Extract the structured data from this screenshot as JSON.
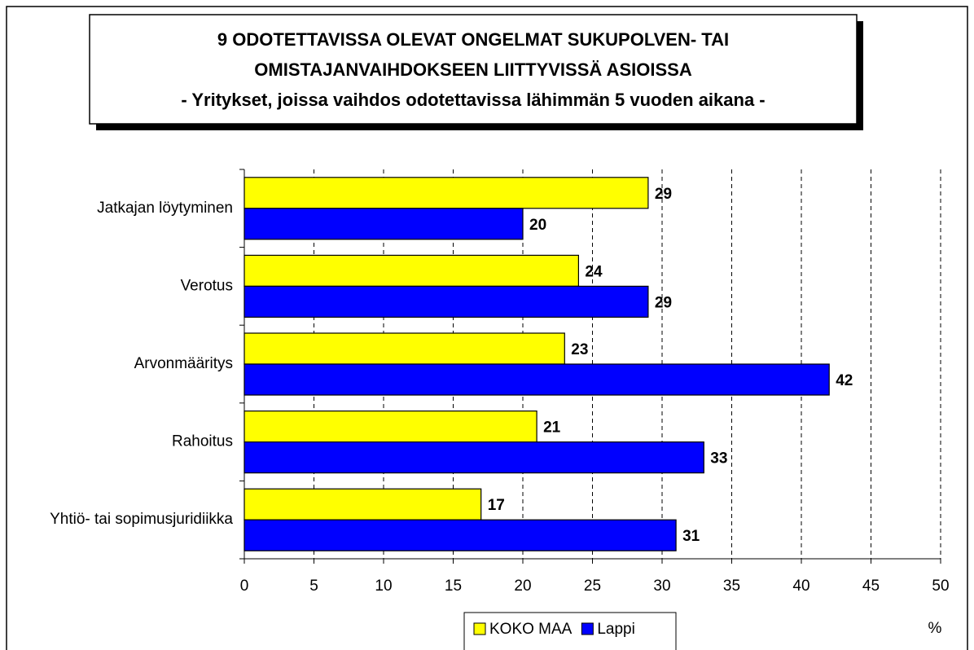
{
  "chart_data": {
    "type": "bar",
    "orientation": "horizontal",
    "title": [
      "9 ODOTETTAVISSA OLEVAT ONGELMAT SUKUPOLVEN- TAI",
      "OMISTAJANVAIHDOKSEEN LIITTYVISSÄ ASIOISSA"
    ],
    "subtitle": "- Yritykset, joissa vaihdos odotettavissa lähimmän 5 vuoden aikana -",
    "categories": [
      "Jatkajan löytyminen",
      "Verotus",
      "Arvonmääritys",
      "Rahoitus",
      "Yhtiö- tai sopimusjuridiikka"
    ],
    "series": [
      {
        "name": "KOKO MAA",
        "color": "#ffff00",
        "values": [
          29,
          24,
          23,
          21,
          17
        ]
      },
      {
        "name": "Lappi",
        "color": "#0000ff",
        "values": [
          20,
          29,
          42,
          33,
          31
        ]
      }
    ],
    "xlim": [
      0,
      50
    ],
    "xticks": [
      0,
      5,
      10,
      15,
      20,
      25,
      30,
      35,
      40,
      45,
      50
    ],
    "x_label": "%",
    "grid": true,
    "legend": "bottom"
  }
}
